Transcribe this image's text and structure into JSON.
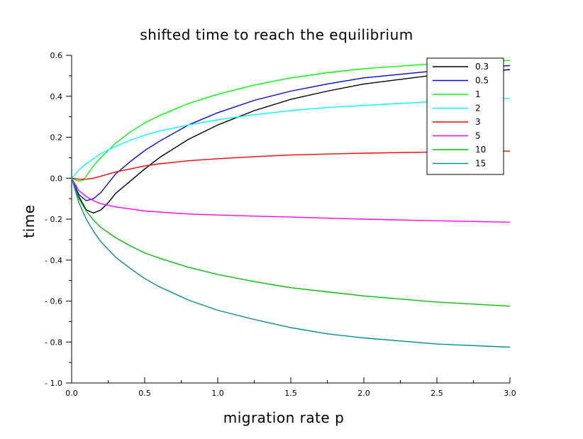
{
  "chart_data": {
    "type": "line",
    "title": "shifted time to reach the equilibrium",
    "xlabel": "migration rate p",
    "ylabel": "time",
    "xlim": [
      0,
      3
    ],
    "ylim": [
      -1.0,
      0.6
    ],
    "xticks": [
      {
        "value": 0.0,
        "label": "0.0"
      },
      {
        "value": 0.5,
        "label": "0.5"
      },
      {
        "value": 1.0,
        "label": "1.0"
      },
      {
        "value": 1.5,
        "label": "1.5"
      },
      {
        "value": 2.0,
        "label": "2.0"
      },
      {
        "value": 2.5,
        "label": "2.5"
      },
      {
        "value": 3.0,
        "label": "3.0"
      }
    ],
    "yticks": [
      {
        "value": 0.6,
        "label": "0.6"
      },
      {
        "value": 0.4,
        "label": "0.4"
      },
      {
        "value": 0.2,
        "label": "0.2"
      },
      {
        "value": 0.0,
        "label": "0.0"
      },
      {
        "value": -0.2,
        "label": "- 0.2"
      },
      {
        "value": -0.4,
        "label": "- 0.4"
      },
      {
        "value": -0.6,
        "label": "- 0.6"
      },
      {
        "value": -0.8,
        "label": "- 0.8"
      },
      {
        "value": -1.0,
        "label": "- 1.0"
      }
    ],
    "legend_position": "top-right",
    "grid": false,
    "series": [
      {
        "name": "0.3",
        "color": "#000000",
        "points": [
          [
            0,
            0
          ],
          [
            0.05,
            -0.09
          ],
          [
            0.1,
            -0.155
          ],
          [
            0.15,
            -0.17
          ],
          [
            0.2,
            -0.155
          ],
          [
            0.25,
            -0.12
          ],
          [
            0.3,
            -0.075
          ],
          [
            0.4,
            -0.015
          ],
          [
            0.5,
            0.045
          ],
          [
            0.6,
            0.1
          ],
          [
            0.8,
            0.19
          ],
          [
            1.0,
            0.26
          ],
          [
            1.25,
            0.33
          ],
          [
            1.5,
            0.385
          ],
          [
            1.75,
            0.425
          ],
          [
            2.0,
            0.46
          ],
          [
            2.5,
            0.505
          ],
          [
            3.0,
            0.53
          ]
        ]
      },
      {
        "name": "0.5",
        "color": "#0000ff",
        "points": [
          [
            0,
            0
          ],
          [
            0.05,
            -0.08
          ],
          [
            0.1,
            -0.11
          ],
          [
            0.15,
            -0.1
          ],
          [
            0.2,
            -0.07
          ],
          [
            0.25,
            -0.025
          ],
          [
            0.3,
            0.02
          ],
          [
            0.4,
            0.08
          ],
          [
            0.5,
            0.135
          ],
          [
            0.6,
            0.18
          ],
          [
            0.8,
            0.26
          ],
          [
            1.0,
            0.32
          ],
          [
            1.25,
            0.38
          ],
          [
            1.5,
            0.425
          ],
          [
            1.75,
            0.46
          ],
          [
            2.0,
            0.49
          ],
          [
            2.5,
            0.525
          ],
          [
            3.0,
            0.55
          ]
        ]
      },
      {
        "name": "1",
        "color": "#00ff00",
        "points": [
          [
            0,
            0
          ],
          [
            0.05,
            -0.015
          ],
          [
            0.08,
            -0.01
          ],
          [
            0.1,
            0.01
          ],
          [
            0.15,
            0.06
          ],
          [
            0.2,
            0.1
          ],
          [
            0.3,
            0.17
          ],
          [
            0.4,
            0.225
          ],
          [
            0.5,
            0.27
          ],
          [
            0.6,
            0.305
          ],
          [
            0.8,
            0.365
          ],
          [
            1.0,
            0.41
          ],
          [
            1.25,
            0.455
          ],
          [
            1.5,
            0.49
          ],
          [
            1.75,
            0.515
          ],
          [
            2.0,
            0.535
          ],
          [
            2.5,
            0.56
          ],
          [
            3.0,
            0.575
          ]
        ]
      },
      {
        "name": "2",
        "color": "#00ffff",
        "points": [
          [
            0,
            0
          ],
          [
            0.05,
            0.04
          ],
          [
            0.1,
            0.07
          ],
          [
            0.15,
            0.095
          ],
          [
            0.2,
            0.12
          ],
          [
            0.3,
            0.155
          ],
          [
            0.4,
            0.185
          ],
          [
            0.5,
            0.21
          ],
          [
            0.6,
            0.23
          ],
          [
            0.8,
            0.26
          ],
          [
            1.0,
            0.285
          ],
          [
            1.25,
            0.31
          ],
          [
            1.5,
            0.33
          ],
          [
            1.75,
            0.345
          ],
          [
            2.0,
            0.355
          ],
          [
            2.5,
            0.375
          ],
          [
            3.0,
            0.39
          ]
        ]
      },
      {
        "name": "3",
        "color": "#ff0000",
        "points": [
          [
            0,
            0
          ],
          [
            0.05,
            -0.005
          ],
          [
            0.1,
            -0.005
          ],
          [
            0.15,
            0.0
          ],
          [
            0.2,
            0.01
          ],
          [
            0.3,
            0.03
          ],
          [
            0.4,
            0.045
          ],
          [
            0.5,
            0.06
          ],
          [
            0.6,
            0.07
          ],
          [
            0.8,
            0.085
          ],
          [
            1.0,
            0.095
          ],
          [
            1.25,
            0.105
          ],
          [
            1.5,
            0.113
          ],
          [
            1.75,
            0.118
          ],
          [
            2.0,
            0.122
          ],
          [
            2.5,
            0.128
          ],
          [
            3.0,
            0.132
          ]
        ]
      },
      {
        "name": "5",
        "color": "#ff00ff",
        "points": [
          [
            0,
            0
          ],
          [
            0.05,
            -0.06
          ],
          [
            0.1,
            -0.09
          ],
          [
            0.15,
            -0.11
          ],
          [
            0.2,
            -0.125
          ],
          [
            0.3,
            -0.14
          ],
          [
            0.4,
            -0.15
          ],
          [
            0.5,
            -0.16
          ],
          [
            0.6,
            -0.165
          ],
          [
            0.8,
            -0.175
          ],
          [
            1.0,
            -0.18
          ],
          [
            1.25,
            -0.185
          ],
          [
            1.5,
            -0.19
          ],
          [
            1.75,
            -0.195
          ],
          [
            2.0,
            -0.2
          ],
          [
            2.5,
            -0.208
          ],
          [
            3.0,
            -0.215
          ]
        ]
      },
      {
        "name": "10",
        "color": "#00c000",
        "points": [
          [
            0,
            0
          ],
          [
            0.05,
            -0.1
          ],
          [
            0.1,
            -0.16
          ],
          [
            0.15,
            -0.205
          ],
          [
            0.2,
            -0.24
          ],
          [
            0.3,
            -0.29
          ],
          [
            0.4,
            -0.33
          ],
          [
            0.5,
            -0.365
          ],
          [
            0.6,
            -0.39
          ],
          [
            0.8,
            -0.435
          ],
          [
            1.0,
            -0.47
          ],
          [
            1.25,
            -0.505
          ],
          [
            1.5,
            -0.535
          ],
          [
            1.75,
            -0.555
          ],
          [
            2.0,
            -0.575
          ],
          [
            2.5,
            -0.605
          ],
          [
            3.0,
            -0.625
          ]
        ]
      },
      {
        "name": "15",
        "color": "#009090",
        "points": [
          [
            0,
            0
          ],
          [
            0.05,
            -0.12
          ],
          [
            0.1,
            -0.2
          ],
          [
            0.15,
            -0.26
          ],
          [
            0.2,
            -0.31
          ],
          [
            0.3,
            -0.385
          ],
          [
            0.4,
            -0.44
          ],
          [
            0.5,
            -0.49
          ],
          [
            0.6,
            -0.53
          ],
          [
            0.8,
            -0.595
          ],
          [
            1.0,
            -0.645
          ],
          [
            1.25,
            -0.69
          ],
          [
            1.5,
            -0.73
          ],
          [
            1.75,
            -0.76
          ],
          [
            2.0,
            -0.78
          ],
          [
            2.5,
            -0.81
          ],
          [
            3.0,
            -0.825
          ]
        ]
      }
    ]
  }
}
